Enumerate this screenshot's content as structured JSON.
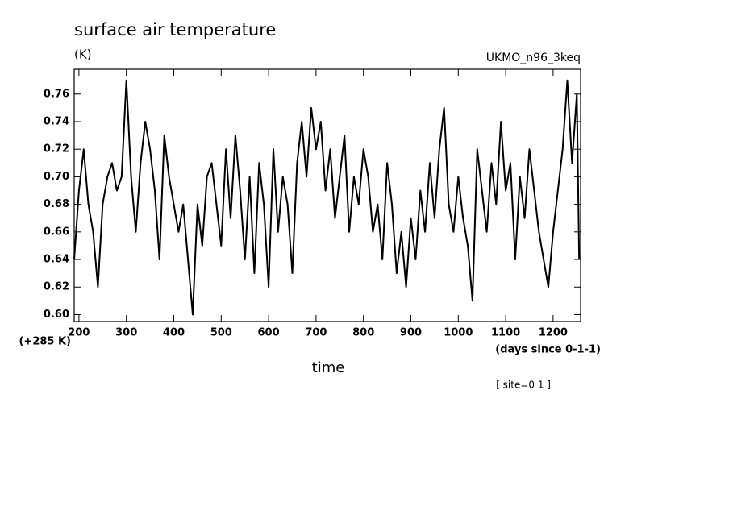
{
  "chart_data": {
    "type": "line",
    "title": "surface air temperature",
    "unit_label": "(K)",
    "model_label": "UKMO_n96_3keq",
    "offset_label": "(+285 K)",
    "x_label": "time",
    "x_units": "(days since 0-1-1)",
    "site_label": "[ site=0 1 ]",
    "x": [
      190,
      200,
      210,
      220,
      230,
      240,
      250,
      260,
      270,
      280,
      290,
      300,
      310,
      320,
      330,
      340,
      350,
      360,
      370,
      380,
      390,
      400,
      410,
      420,
      430,
      440,
      450,
      460,
      470,
      480,
      490,
      500,
      510,
      520,
      530,
      540,
      550,
      560,
      570,
      580,
      590,
      600,
      610,
      620,
      630,
      640,
      650,
      660,
      670,
      680,
      690,
      700,
      710,
      720,
      730,
      740,
      750,
      760,
      770,
      780,
      790,
      800,
      810,
      820,
      830,
      840,
      850,
      860,
      870,
      880,
      890,
      900,
      910,
      920,
      930,
      940,
      950,
      960,
      970,
      980,
      990,
      1000,
      1010,
      1020,
      1030,
      1040,
      1050,
      1060,
      1070,
      1080,
      1090,
      1100,
      1110,
      1120,
      1130,
      1140,
      1150,
      1160,
      1170,
      1180,
      1190,
      1200,
      1210,
      1220,
      1230,
      1240,
      1250,
      1255
    ],
    "series": [
      {
        "name": "surface air temperature",
        "color": "#000000",
        "values": [
          0.64,
          0.69,
          0.72,
          0.68,
          0.66,
          0.62,
          0.68,
          0.7,
          0.71,
          0.69,
          0.7,
          0.77,
          0.7,
          0.66,
          0.71,
          0.74,
          0.72,
          0.69,
          0.64,
          0.73,
          0.7,
          0.68,
          0.66,
          0.68,
          0.64,
          0.6,
          0.68,
          0.65,
          0.7,
          0.71,
          0.68,
          0.65,
          0.72,
          0.67,
          0.73,
          0.69,
          0.64,
          0.7,
          0.63,
          0.71,
          0.68,
          0.62,
          0.72,
          0.66,
          0.7,
          0.68,
          0.63,
          0.71,
          0.74,
          0.7,
          0.75,
          0.72,
          0.74,
          0.69,
          0.72,
          0.67,
          0.7,
          0.73,
          0.66,
          0.7,
          0.68,
          0.72,
          0.7,
          0.66,
          0.68,
          0.64,
          0.71,
          0.68,
          0.63,
          0.66,
          0.62,
          0.67,
          0.64,
          0.69,
          0.66,
          0.71,
          0.67,
          0.72,
          0.75,
          0.68,
          0.66,
          0.7,
          0.67,
          0.65,
          0.61,
          0.72,
          0.69,
          0.66,
          0.71,
          0.68,
          0.74,
          0.69,
          0.71,
          0.64,
          0.7,
          0.67,
          0.72,
          0.69,
          0.66,
          0.64,
          0.62,
          0.66,
          0.69,
          0.72,
          0.77,
          0.71,
          0.76,
          0.64
        ]
      }
    ],
    "xlim": [
      190,
      1258
    ],
    "ylim": [
      0.595,
      0.778
    ],
    "xticks": [
      200,
      300,
      400,
      500,
      600,
      700,
      800,
      900,
      1000,
      1100,
      1200
    ],
    "yticks": [
      {
        "value": 0.6,
        "label": "0.60"
      },
      {
        "value": 0.62,
        "label": "0.62"
      },
      {
        "value": 0.64,
        "label": "0.64"
      },
      {
        "value": 0.66,
        "label": "0.66"
      },
      {
        "value": 0.68,
        "label": "0.68"
      },
      {
        "value": 0.7,
        "label": "0.70"
      },
      {
        "value": 0.72,
        "label": "0.72"
      },
      {
        "value": 0.74,
        "label": "0.74"
      },
      {
        "value": 0.76,
        "label": "0.76"
      }
    ],
    "grid": false
  }
}
